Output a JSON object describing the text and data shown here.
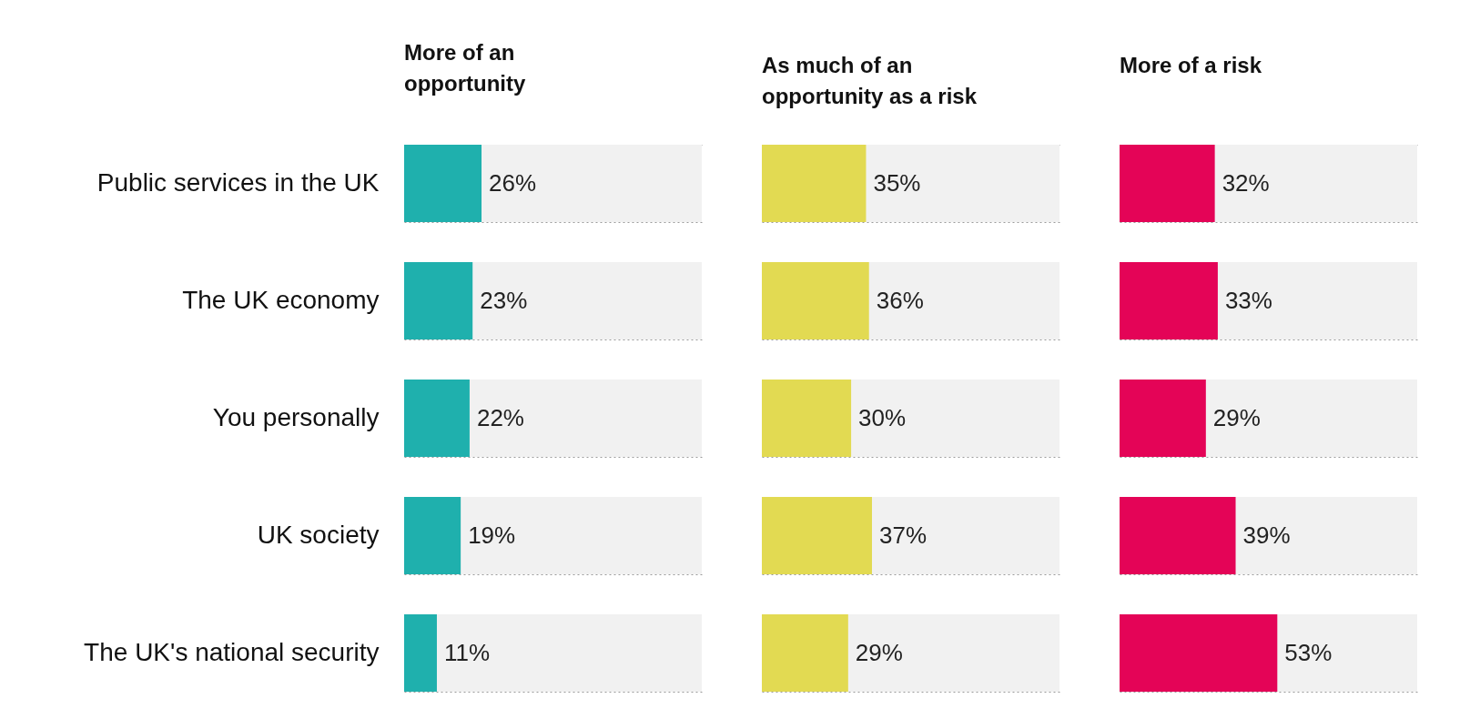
{
  "chart_data": [
    {
      "type": "bar",
      "orientation": "horizontal",
      "title": "More of an opportunity",
      "categories": [
        "Public services in the UK",
        "The UK economy",
        "You personally",
        "UK society",
        "The UK's national security"
      ],
      "values": [
        26,
        23,
        22,
        19,
        11
      ],
      "value_labels": [
        "26%",
        "23%",
        "22%",
        "19%",
        "11%"
      ],
      "color": "#1fb0ad",
      "xlim": [
        0,
        100
      ],
      "grid": "y",
      "tick_labels": "y"
    },
    {
      "type": "bar",
      "orientation": "horizontal",
      "title": "As much of an opportunity as a risk",
      "categories": [
        null,
        null,
        null,
        null,
        null
      ],
      "values": [
        35,
        36,
        30,
        37,
        29
      ],
      "value_labels": [
        "35%",
        "36%",
        "30%",
        "37%",
        "29%"
      ],
      "color": "#e2da52",
      "xlim": [
        0,
        100
      ],
      "grid": "y",
      "tick_labels": false
    },
    {
      "type": "bar",
      "orientation": "horizontal",
      "title": "More of a risk",
      "categories": [
        null,
        null,
        null,
        null,
        null
      ],
      "values": [
        32,
        33,
        29,
        39,
        53
      ],
      "value_labels": [
        "32%",
        "33%",
        "29%",
        "39%",
        "53%"
      ],
      "color": "#e40457",
      "xlim": [
        0,
        100
      ],
      "grid": "y",
      "tick_labels": false
    }
  ]
}
